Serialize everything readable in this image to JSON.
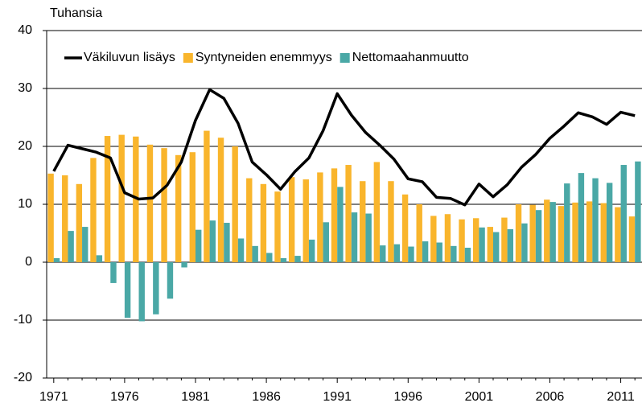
{
  "chart_data": {
    "type": "bar",
    "y_label": "Tuhansia",
    "categories": [
      "1971",
      null,
      null,
      null,
      null,
      "1976",
      null,
      null,
      null,
      null,
      "1981",
      null,
      null,
      null,
      null,
      "1986",
      null,
      null,
      null,
      null,
      "1991",
      null,
      null,
      null,
      null,
      "1996",
      null,
      null,
      null,
      null,
      "2001",
      null,
      null,
      null,
      null,
      "2006",
      null,
      null,
      null,
      null,
      "2011",
      null
    ],
    "series": [
      {
        "name": "Väkiluvun lisäys",
        "type": "line",
        "color": "#000000",
        "values": [
          15.7,
          20.2,
          19.6,
          19,
          18,
          12,
          10.9,
          11.1,
          13.3,
          17.3,
          24.5,
          29.8,
          28.3,
          24,
          17.3,
          15.1,
          12.6,
          15.6,
          18,
          22.7,
          29.1,
          25.4,
          22.4,
          20.2,
          17.8,
          14.4,
          13.9,
          11.2,
          11,
          9.9,
          13.5,
          11.3,
          13.4,
          16.4,
          18.6,
          21.4,
          23.5,
          25.8,
          25.1,
          23.8,
          25.9,
          25.3
        ]
      },
      {
        "name": "Syntyneiden enemmyys",
        "type": "bar",
        "color": "#f9b52c",
        "values": [
          15.3,
          15,
          13.5,
          18,
          21.8,
          22,
          21.7,
          20.3,
          19.7,
          18.5,
          19,
          22.7,
          21.5,
          20,
          14.5,
          13.5,
          12.2,
          14.7,
          14.3,
          15.5,
          16.2,
          16.8,
          14,
          17.3,
          14,
          11.7,
          10,
          8,
          8.3,
          7.4,
          7.6,
          6.1,
          7.7,
          10,
          9.9,
          10.8,
          9.7,
          10.3,
          10.5,
          10.2,
          9.5,
          7.9
        ]
      },
      {
        "name": "Nettomaahanmuutto",
        "type": "bar",
        "color": "#4aa8a6",
        "values": [
          0.7,
          5.4,
          6.1,
          1.2,
          -3.6,
          -9.6,
          -10.2,
          -9,
          -6.3,
          -0.9,
          5.6,
          7.2,
          6.8,
          4.1,
          2.8,
          1.6,
          0.7,
          1.1,
          3.9,
          6.9,
          13,
          8.6,
          8.4,
          2.9,
          3.1,
          2.7,
          3.6,
          3.4,
          2.8,
          2.5,
          6,
          5.2,
          5.7,
          6.7,
          9,
          10.4,
          13.6,
          15.4,
          14.5,
          13.7,
          16.8,
          17.4
        ]
      }
    ],
    "ylim": [
      -20,
      40
    ],
    "yticks": [
      -20,
      -10,
      0,
      10,
      20,
      30,
      40
    ],
    "grid": true,
    "legend": "top-left"
  }
}
